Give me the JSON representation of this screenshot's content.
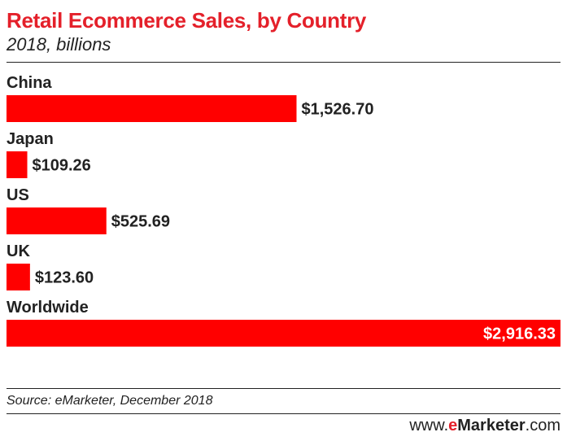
{
  "header": {
    "title": "Retail Ecommerce Sales, by Country",
    "subtitle": "2018, billions"
  },
  "footer": {
    "source": "Source: eMarketer, December 2018",
    "brand_prefix": "www.",
    "brand_accent": "e",
    "brand_name": "Marketer",
    "brand_suffix": ".com"
  },
  "colors": {
    "bar": "#ff0000",
    "accent": "#e4202a",
    "text": "#222222",
    "label_on_bar": "#ffffff"
  },
  "chart_data": {
    "type": "bar",
    "orientation": "horizontal",
    "categories": [
      "China",
      "Japan",
      "US",
      "UK",
      "Worldwide"
    ],
    "values": [
      1526.7,
      109.26,
      525.69,
      123.6,
      2916.33
    ],
    "value_labels": [
      "$1,526.70",
      "$109.26",
      "$525.69",
      "$123.60",
      "$2,916.33"
    ],
    "title": "Retail Ecommerce Sales, by Country",
    "subtitle": "2018, billions",
    "xlabel": "",
    "ylabel": "",
    "xlim": [
      0,
      2916.33
    ],
    "grid": false,
    "legend": "none"
  }
}
